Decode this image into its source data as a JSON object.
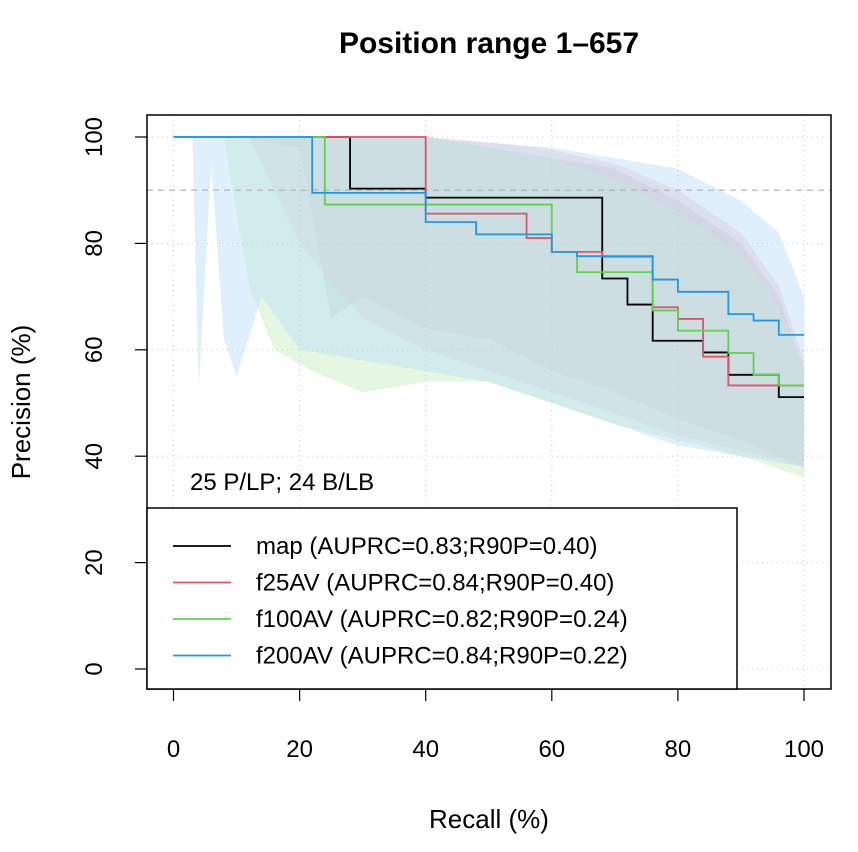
{
  "chart_data": {
    "type": "line",
    "title": "Position range 1–657",
    "xlabel": "Recall (%)",
    "ylabel": "Precision (%)",
    "xlim": [
      0,
      100
    ],
    "ylim": [
      0,
      100
    ],
    "x_ticks": [
      "0",
      "20",
      "40",
      "60",
      "80",
      "100"
    ],
    "y_ticks": [
      "0",
      "20",
      "40",
      "60",
      "80",
      "100"
    ],
    "grid": true,
    "reference_line": 90,
    "annotation": "25 P/LP; 24 B/LB",
    "legend_position": "bottom-left",
    "series": [
      {
        "name": "map (AUPRC=0.83;R90P=0.40)",
        "color": "#000000",
        "band_color": "#b7b7b7",
        "x": [
          0,
          28,
          28,
          40,
          40,
          68,
          68,
          72,
          72,
          76,
          76,
          84,
          84,
          88,
          88,
          96,
          96,
          100
        ],
        "y": [
          100,
          100,
          90.3,
          90.3,
          88.6,
          88.6,
          73.4,
          73.4,
          68.5,
          68.5,
          61.7,
          61.7,
          59.5,
          59.5,
          55.3,
          55.3,
          51.1,
          51.1
        ],
        "band_upper": [
          [
            0,
            100
          ],
          [
            40,
            100
          ],
          [
            60,
            96
          ],
          [
            70,
            94
          ],
          [
            80,
            88
          ],
          [
            90,
            80
          ],
          [
            96,
            70
          ],
          [
            100,
            56
          ]
        ],
        "band_lower": [
          [
            0,
            100
          ],
          [
            10,
            100
          ],
          [
            20,
            98
          ],
          [
            25,
            66
          ],
          [
            30,
            70
          ],
          [
            40,
            64
          ],
          [
            50,
            62
          ],
          [
            60,
            56
          ],
          [
            70,
            52
          ],
          [
            80,
            47
          ],
          [
            90,
            43
          ],
          [
            100,
            38
          ]
        ]
      },
      {
        "name": "f25AV (AUPRC=0.84;R90P=0.40)",
        "color": "#df536b",
        "band_color": "#f0c0cb",
        "x": [
          0,
          40,
          40,
          56,
          56,
          60,
          60,
          68,
          68,
          76,
          76,
          80,
          80,
          84,
          84,
          88,
          88,
          100
        ],
        "y": [
          100,
          100,
          85.6,
          85.6,
          81.0,
          81.0,
          78.4,
          78.4,
          77.5,
          77.5,
          68.0,
          68.0,
          65.8,
          65.8,
          58.7,
          58.7,
          53.3,
          53.3
        ],
        "band_upper": [
          [
            0,
            100
          ],
          [
            40,
            100
          ],
          [
            58,
            98
          ],
          [
            70,
            95
          ],
          [
            80,
            90
          ],
          [
            90,
            82
          ],
          [
            96,
            72
          ],
          [
            100,
            58
          ]
        ],
        "band_lower": [
          [
            0,
            100
          ],
          [
            12,
            100
          ],
          [
            20,
            80
          ],
          [
            30,
            66
          ],
          [
            40,
            60
          ],
          [
            50,
            56
          ],
          [
            60,
            52
          ],
          [
            70,
            48
          ],
          [
            80,
            44
          ],
          [
            90,
            41
          ],
          [
            100,
            38
          ]
        ]
      },
      {
        "name": "f100AV (AUPRC=0.82;R90P=0.24)",
        "color": "#61d04f",
        "band_color": "#cbeec4",
        "x": [
          0,
          24,
          24,
          60,
          60,
          64,
          64,
          76,
          76,
          80,
          80,
          88,
          88,
          92,
          92,
          96,
          96,
          100
        ],
        "y": [
          100,
          100,
          87.3,
          87.3,
          78.4,
          78.4,
          74.6,
          74.6,
          67.4,
          67.4,
          63.6,
          63.6,
          59.4,
          59.4,
          55.3,
          55.3,
          53.3,
          53.3
        ],
        "band_upper": [
          [
            0,
            100
          ],
          [
            40,
            100
          ],
          [
            60,
            96
          ],
          [
            70,
            92
          ],
          [
            80,
            86
          ],
          [
            90,
            78
          ],
          [
            96,
            68
          ],
          [
            100,
            56
          ]
        ],
        "band_lower": [
          [
            0,
            100
          ],
          [
            8,
            100
          ],
          [
            12,
            72
          ],
          [
            16,
            60
          ],
          [
            22,
            56
          ],
          [
            30,
            52
          ],
          [
            40,
            54
          ],
          [
            50,
            54
          ],
          [
            60,
            50
          ],
          [
            70,
            46
          ],
          [
            80,
            43
          ],
          [
            90,
            40
          ],
          [
            100,
            36
          ]
        ]
      },
      {
        "name": "f200AV (AUPRC=0.84;R90P=0.22)",
        "color": "#2297e6",
        "band_color": "#bfe0f7",
        "x": [
          0,
          22,
          22,
          40,
          40,
          48,
          48,
          60,
          60,
          64,
          64,
          76,
          76,
          80,
          80,
          88,
          88,
          92,
          92,
          96,
          96,
          100
        ],
        "y": [
          100,
          100,
          89.5,
          89.5,
          84.0,
          84.0,
          81.7,
          81.7,
          78.4,
          78.4,
          77.6,
          77.6,
          73.2,
          73.2,
          70.9,
          70.9,
          66.7,
          66.7,
          65.5,
          65.5,
          62.8,
          62.8
        ],
        "band_upper": [
          [
            0,
            100
          ],
          [
            40,
            100
          ],
          [
            60,
            98
          ],
          [
            70,
            96
          ],
          [
            80,
            94
          ],
          [
            90,
            88
          ],
          [
            96,
            82
          ],
          [
            100,
            70
          ]
        ],
        "band_lower": [
          [
            0,
            100
          ],
          [
            3,
            100
          ],
          [
            4,
            53
          ],
          [
            6,
            95
          ],
          [
            8,
            62
          ],
          [
            10,
            55
          ],
          [
            14,
            70
          ],
          [
            20,
            60
          ],
          [
            30,
            58
          ],
          [
            40,
            56
          ],
          [
            50,
            54
          ],
          [
            60,
            50
          ],
          [
            70,
            46
          ],
          [
            80,
            42
          ],
          [
            90,
            40
          ],
          [
            100,
            38
          ]
        ]
      }
    ]
  }
}
